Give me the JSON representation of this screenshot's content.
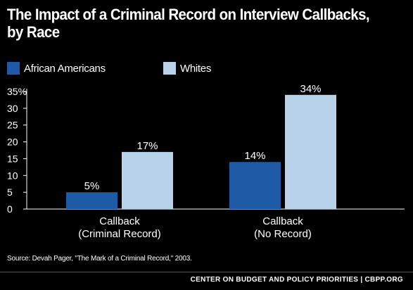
{
  "title": "The Impact of a Criminal Record on Interview Callbacks,\nby Race",
  "colors": {
    "african_americans": "#1f5aa6",
    "whites": "#b8d2ea",
    "background": "#000000",
    "text": "#ffffff"
  },
  "legend": [
    {
      "label": "African Americans",
      "color": "#1f5aa6"
    },
    {
      "label": "Whites",
      "color": "#b8d2ea"
    }
  ],
  "source": "Source: Devah Pager, \"The Mark of a Criminal Record,\" 2003.",
  "footer": "CENTER ON BUDGET AND POLICY PRIORITIES | CBPP.ORG",
  "chart_data": {
    "type": "bar",
    "title": "The Impact of a Criminal Record on Interview Callbacks, by Race",
    "categories": [
      "Callback\n(Criminal Record)",
      "Callback\n(No Record)"
    ],
    "series": [
      {
        "name": "African Americans",
        "values": [
          5,
          14
        ],
        "labels": [
          "5%",
          "14%"
        ],
        "color": "#1f5aa6"
      },
      {
        "name": "Whites",
        "values": [
          17,
          34
        ],
        "labels": [
          "17%",
          "34%"
        ],
        "color": "#b8d2ea"
      }
    ],
    "yticks": [
      "0",
      "5",
      "10",
      "15",
      "20",
      "25",
      "30",
      "35%"
    ],
    "ylim": [
      0,
      35
    ],
    "xlabel": "",
    "ylabel": "",
    "grid": false,
    "legend_position": "top-left"
  }
}
